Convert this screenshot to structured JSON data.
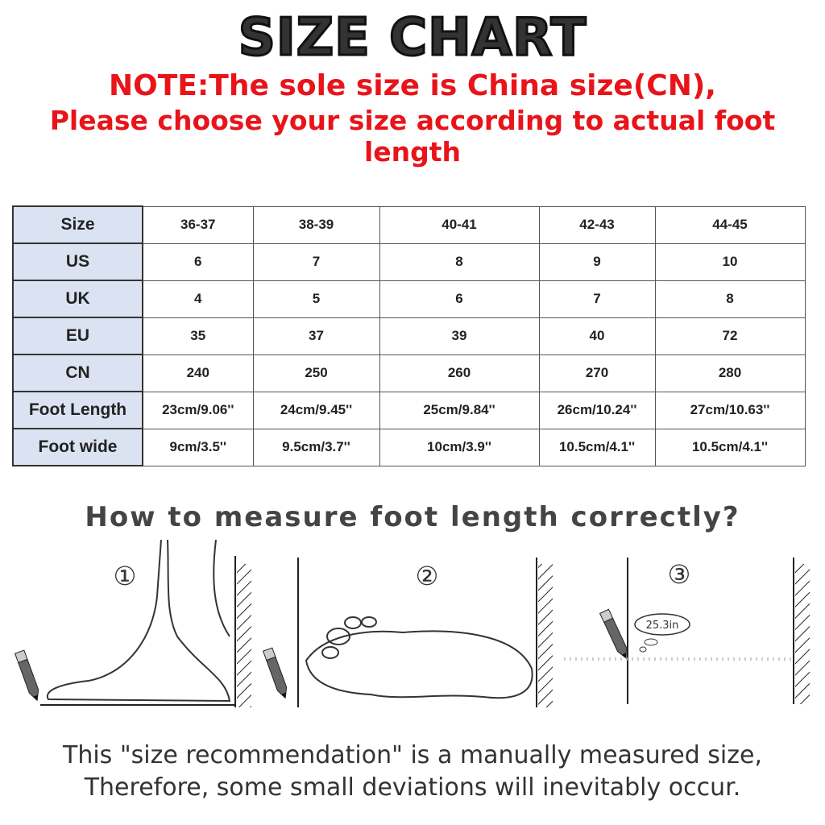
{
  "title": "SIZE CHART",
  "note_line1": "NOTE:The sole size is China size(CN),",
  "note_line2": "Please choose your size according to actual foot length",
  "table": {
    "rows": [
      {
        "label": "Size",
        "values": [
          "36-37",
          "38-39",
          "40-41",
          "42-43",
          "44-45"
        ]
      },
      {
        "label": "US",
        "values": [
          "6",
          "7",
          "8",
          "9",
          "10"
        ]
      },
      {
        "label": "UK",
        "values": [
          "4",
          "5",
          "6",
          "7",
          "8"
        ]
      },
      {
        "label": "EU",
        "values": [
          "35",
          "37",
          "39",
          "40",
          "72"
        ]
      },
      {
        "label": "CN",
        "values": [
          "240",
          "250",
          "260",
          "270",
          "280"
        ]
      },
      {
        "label": "Foot Length",
        "values": [
          "23cm/9.06''",
          "24cm/9.45''",
          "25cm/9.84''",
          "26cm/10.24''",
          "27cm/10.63''"
        ]
      },
      {
        "label": "Foot wide",
        "values": [
          "9cm/3.5''",
          "9.5cm/3.7''",
          "10cm/3.9''",
          "10.5cm/4.1''",
          "10.5cm/4.1''"
        ]
      }
    ],
    "header_bg": "#dbe3f3"
  },
  "howto_title": "How to measure foot length correctly?",
  "steps": [
    "①",
    "②",
    "③"
  ],
  "measurement_bubble": "25.3in",
  "footer_line1": "This \"size recommendation\" is a manually measured size,",
  "footer_line2": "Therefore, some small deviations will inevitably occur.",
  "colors": {
    "note": "#e8141a",
    "title": "#333333"
  }
}
